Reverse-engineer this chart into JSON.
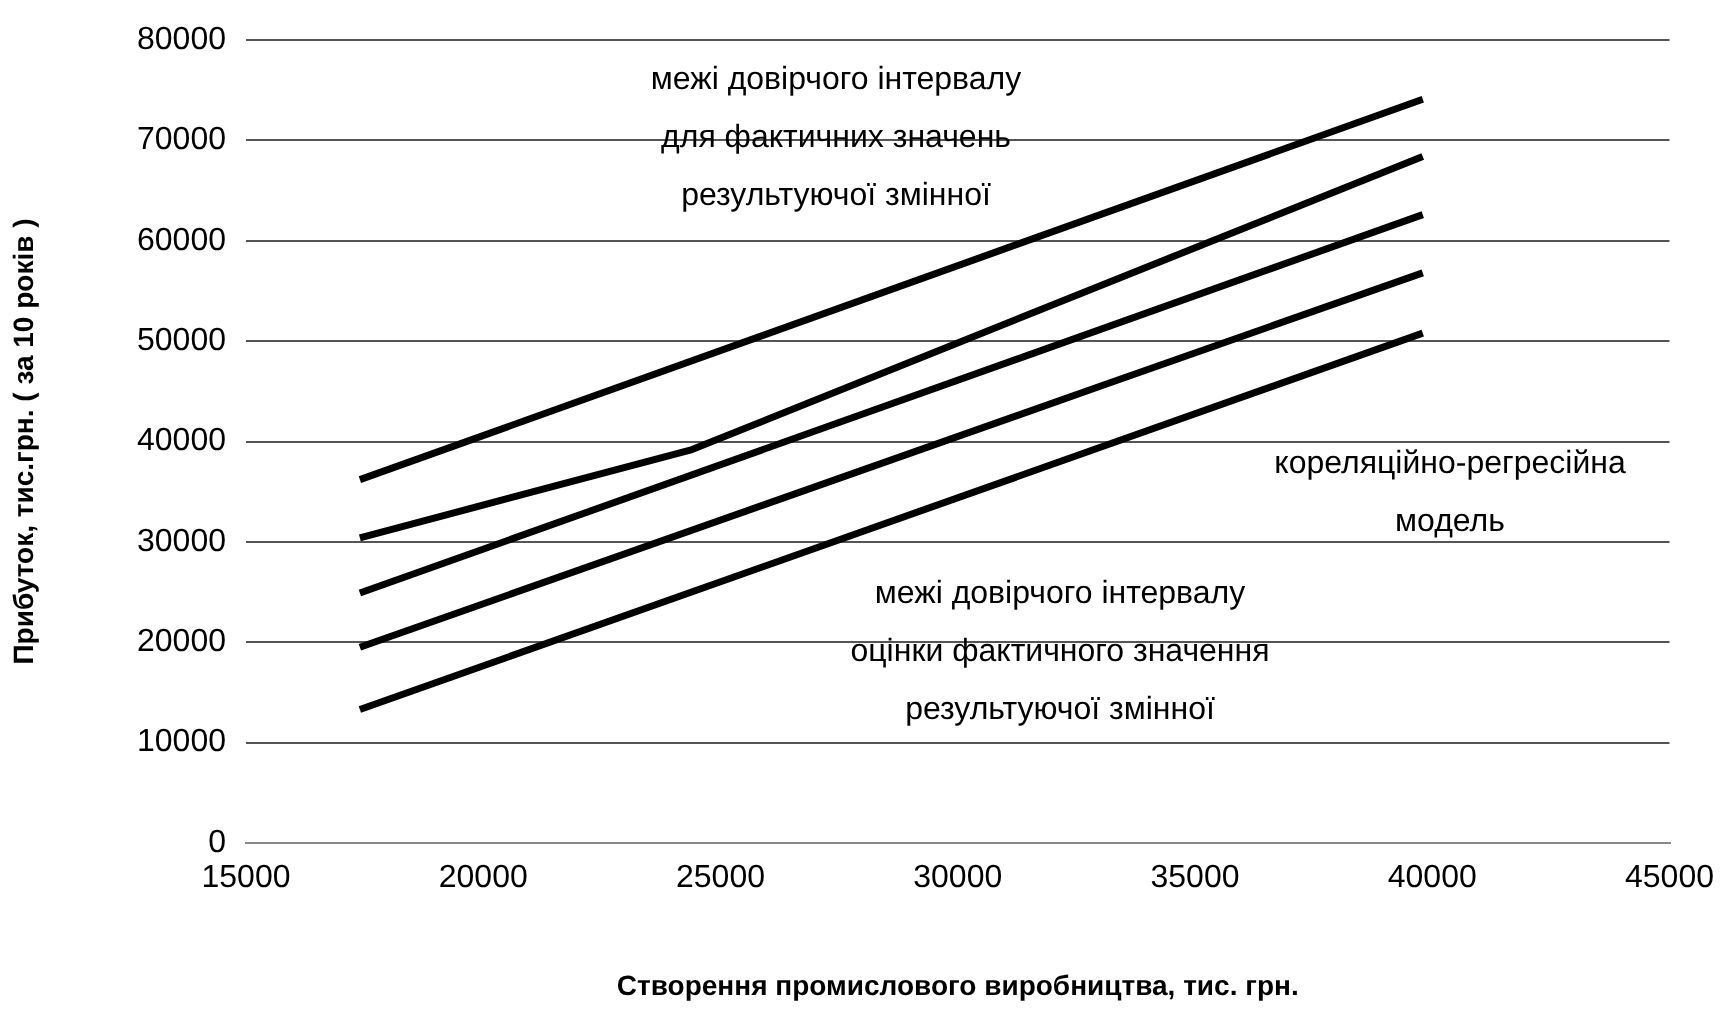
{
  "chart_data": {
    "type": "line",
    "xlabel": "Створення промислового виробництва, тис. грн.",
    "ylabel": "Прибуток, тис.грн. ( за 10 років )",
    "xlim": [
      15000,
      45000
    ],
    "xticks": [
      15000,
      20000,
      25000,
      30000,
      35000,
      40000,
      45000
    ],
    "ylim": [
      0,
      80000
    ],
    "yticks": [
      0,
      10000,
      20000,
      30000,
      40000,
      50000,
      60000,
      70000,
      80000
    ],
    "grid": "y",
    "legend": false,
    "marker": "none",
    "line_style": "solid",
    "series": [
      {
        "color": "#000000",
        "x": [
          17400,
          39800
        ],
        "values": [
          36200,
          74100
        ]
      },
      {
        "color": "#000000",
        "x": [
          17400,
          24400,
          39800
        ],
        "values": [
          30400,
          39200,
          68400
        ]
      },
      {
        "color": "#000000",
        "x": [
          17400,
          39800
        ],
        "values": [
          24900,
          62600
        ]
      },
      {
        "color": "#000000",
        "x": [
          17400,
          33000,
          39800
        ],
        "values": [
          19500,
          45500,
          56800
        ]
      },
      {
        "color": "#000000",
        "x": [
          17400,
          39800
        ],
        "values": [
          13300,
          50800
        ]
      }
    ],
    "annotations": [
      "межі довірчого інтервалу\nдля фактичних значень\nрезультуючої змінної",
      "кореляційно-регресійна\nмодель",
      "межі довірчого інтервалу\nоцінки фактичного значення\nрезультуючої змінної"
    ]
  }
}
